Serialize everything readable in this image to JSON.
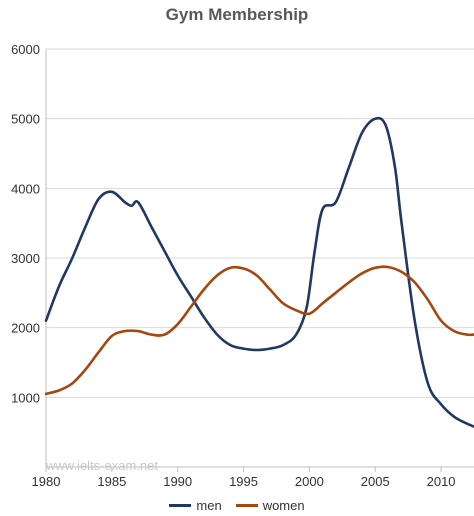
{
  "chart_data": {
    "type": "line",
    "title": "Gym Membership",
    "xlabel": "",
    "ylabel": "",
    "xlim": [
      1980,
      2012.5
    ],
    "ylim": [
      0,
      6000
    ],
    "x_ticks": [
      "1980",
      "1985",
      "1990",
      "1995",
      "2000",
      "2005",
      "2010"
    ],
    "y_ticks": [
      "1000",
      "2000",
      "3000",
      "4000",
      "5000",
      "6000"
    ],
    "grid": "horizontal",
    "legend": "bottom",
    "watermark": "www.ielts-exam.net",
    "series": [
      {
        "name": "men",
        "color": "#203864",
        "x": [
          1980,
          1981,
          1982,
          1983,
          1984,
          1985,
          1986,
          1986.5,
          1987,
          1988,
          1989,
          1990,
          1991,
          1992,
          1993,
          1994,
          1995,
          1996,
          1997,
          1998,
          1999,
          1999.8,
          2000.4,
          2001,
          2002,
          2003,
          2004,
          2005,
          2005.8,
          2006.5,
          2007,
          2008,
          2009,
          2010,
          2011,
          2012,
          2012.5
        ],
        "values": [
          2100,
          2600,
          3000,
          3450,
          3850,
          3950,
          3800,
          3750,
          3800,
          3450,
          3100,
          2750,
          2450,
          2150,
          1900,
          1750,
          1700,
          1680,
          1700,
          1750,
          1900,
          2300,
          3100,
          3700,
          3800,
          4300,
          4800,
          5000,
          4900,
          4300,
          3500,
          2100,
          1200,
          900,
          720,
          620,
          580
        ]
      },
      {
        "name": "women",
        "color": "#a6470f",
        "x": [
          1980,
          1981,
          1982,
          1983,
          1984,
          1985,
          1986,
          1987,
          1988,
          1989,
          1990,
          1991,
          1992,
          1993,
          1994,
          1995,
          1996,
          1997,
          1998,
          1999,
          2000,
          2001,
          2002,
          2003,
          2004,
          2005,
          2006,
          2007,
          2008,
          2009,
          2010,
          2011,
          2012,
          2012.5
        ],
        "values": [
          1050,
          1100,
          1200,
          1400,
          1650,
          1880,
          1950,
          1950,
          1900,
          1900,
          2050,
          2300,
          2550,
          2750,
          2860,
          2850,
          2750,
          2550,
          2350,
          2250,
          2200,
          2350,
          2500,
          2650,
          2780,
          2860,
          2870,
          2800,
          2650,
          2400,
          2100,
          1950,
          1900,
          1900
        ]
      }
    ]
  }
}
